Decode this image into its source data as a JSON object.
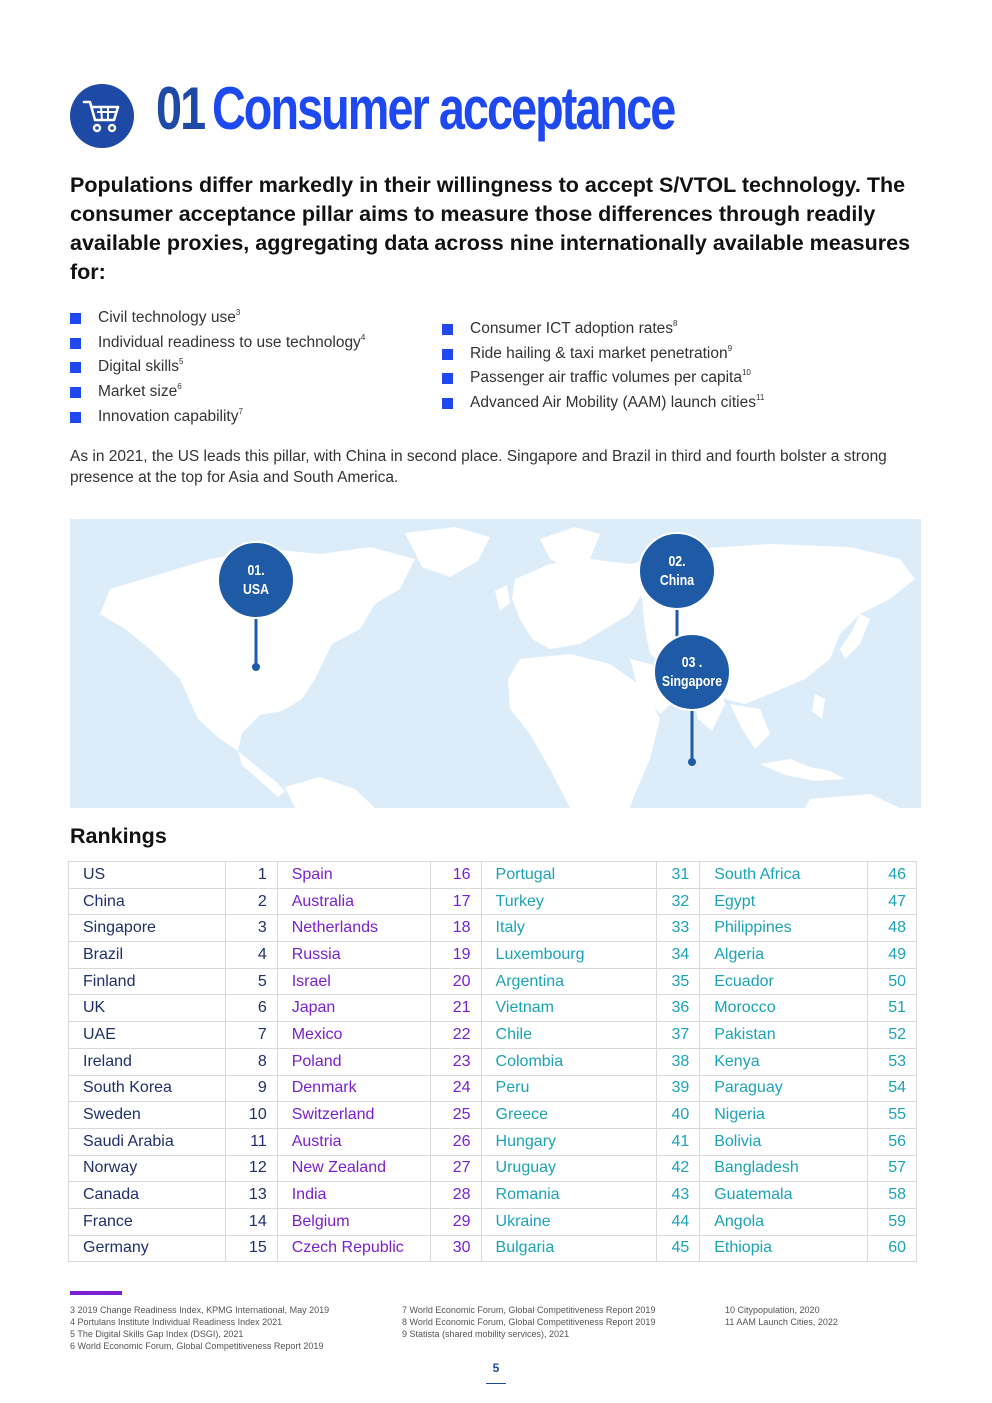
{
  "header": {
    "icon": "shopping-cart-icon",
    "number": "01",
    "title": "Consumer acceptance"
  },
  "intro": "Populations differ markedly in their willingness to accept S/VTOL technology. The consumer acceptance pillar aims to measure those differences through readily available proxies, aggregating data across nine internationally available measures for:",
  "measures_left": [
    {
      "label": "Civil technology use",
      "ref": "3"
    },
    {
      "label": "Individual readiness to use technology",
      "ref": "4"
    },
    {
      "label": "Digital skills",
      "ref": "5"
    },
    {
      "label": "Market size",
      "ref": "6"
    },
    {
      "label": "Innovation capability",
      "ref": "7"
    }
  ],
  "measures_right": [
    {
      "label": "Consumer ICT adoption rates",
      "ref": "8"
    },
    {
      "label": "Ride hailing & taxi market penetration",
      "ref": "9"
    },
    {
      "label": "Passenger air traffic volumes per capita",
      "ref": "10"
    },
    {
      "label": "Advanced Air Mobility (AAM) launch cities",
      "ref": "11"
    }
  ],
  "summary": "As in 2021, the US leads this pillar, with China in second place. Singapore and Brazil in third and fourth bolster a strong presence at the top for Asia and South America.",
  "map": {
    "pins": [
      {
        "rank": "01.",
        "country": "USA"
      },
      {
        "rank": "02.",
        "country": "China"
      },
      {
        "rank": "03 .",
        "country": "Singapore"
      }
    ]
  },
  "rankings": {
    "title": "Rankings",
    "columns": [
      [
        [
          "US",
          "1"
        ],
        [
          "China",
          "2"
        ],
        [
          "Singapore",
          "3"
        ],
        [
          "Brazil",
          "4"
        ],
        [
          "Finland",
          "5"
        ],
        [
          "UK",
          "6"
        ],
        [
          "UAE",
          "7"
        ],
        [
          "Ireland",
          "8"
        ],
        [
          "South Korea",
          "9"
        ],
        [
          "Sweden",
          "10"
        ],
        [
          "Saudi Arabia",
          "11"
        ],
        [
          "Norway",
          "12"
        ],
        [
          "Canada",
          "13"
        ],
        [
          "France",
          "14"
        ],
        [
          "Germany",
          "15"
        ]
      ],
      [
        [
          "Spain",
          "16"
        ],
        [
          "Australia",
          "17"
        ],
        [
          "Netherlands",
          "18"
        ],
        [
          "Russia",
          "19"
        ],
        [
          "Israel",
          "20"
        ],
        [
          "Japan",
          "21"
        ],
        [
          "Mexico",
          "22"
        ],
        [
          "Poland",
          "23"
        ],
        [
          "Denmark",
          "24"
        ],
        [
          "Switzerland",
          "25"
        ],
        [
          "Austria",
          "26"
        ],
        [
          "New Zealand",
          "27"
        ],
        [
          "India",
          "28"
        ],
        [
          "Belgium",
          "29"
        ],
        [
          "Czech Republic",
          "30"
        ]
      ],
      [
        [
          "Portugal",
          "31"
        ],
        [
          "Turkey",
          "32"
        ],
        [
          "Italy",
          "33"
        ],
        [
          "Luxembourg",
          "34"
        ],
        [
          "Argentina",
          "35"
        ],
        [
          "Vietnam",
          "36"
        ],
        [
          "Chile",
          "37"
        ],
        [
          "Colombia",
          "38"
        ],
        [
          "Peru",
          "39"
        ],
        [
          "Greece",
          "40"
        ],
        [
          "Hungary",
          "41"
        ],
        [
          "Uruguay",
          "42"
        ],
        [
          "Romania",
          "43"
        ],
        [
          "Ukraine",
          "44"
        ],
        [
          "Bulgaria",
          "45"
        ]
      ],
      [
        [
          "South Africa",
          "46"
        ],
        [
          "Egypt",
          "47"
        ],
        [
          "Philippines",
          "48"
        ],
        [
          "Algeria",
          "49"
        ],
        [
          "Ecuador",
          "50"
        ],
        [
          "Morocco",
          "51"
        ],
        [
          "Pakistan",
          "52"
        ],
        [
          "Kenya",
          "53"
        ],
        [
          "Paraguay",
          "54"
        ],
        [
          "Nigeria",
          "55"
        ],
        [
          "Bolivia",
          "56"
        ],
        [
          "Bangladesh",
          "57"
        ],
        [
          "Guatemala",
          "58"
        ],
        [
          "Angola",
          "59"
        ],
        [
          "Ethiopia",
          "60"
        ]
      ]
    ]
  },
  "footnotes": {
    "col1": [
      "3   2019 Change Readiness Index, KPMG International, May 2019",
      "4   Portulans Institute Individual Readiness Index 2021",
      "5   The Digital Skills Gap Index (DSGI), 2021",
      "6   World Economic Forum, Global Competitiveness Report 2019"
    ],
    "col2": [
      "7   World Economic Forum, Global Competitiveness Report 2019",
      "8   World Economic Forum, Global Competitiveness Report 2019",
      "9   Statista (shared mobility services), 2021"
    ],
    "col3": [
      "10 Citypopulation, 2020",
      "11 AAM Launch Cities, 2022"
    ]
  },
  "page_number": "5",
  "colors": {
    "brand_dark_blue": "#1e49a6",
    "brand_bright_blue": "#1e49f0",
    "purple": "#7a1fd1",
    "teal": "#1ba3b5",
    "map_sea": "#dcecf9"
  }
}
